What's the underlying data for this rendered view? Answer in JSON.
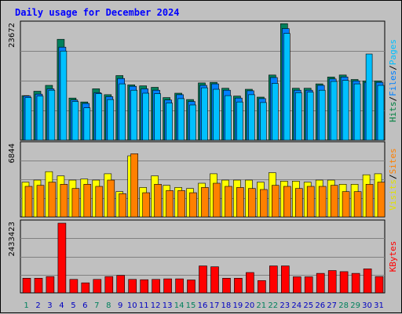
{
  "chart_data": {
    "type": "bar",
    "title": "Daily usage for December 2024",
    "categories": [
      "1",
      "2",
      "3",
      "4",
      "5",
      "6",
      "7",
      "8",
      "9",
      "10",
      "11",
      "12",
      "13",
      "14",
      "15",
      "16",
      "17",
      "18",
      "19",
      "20",
      "21",
      "22",
      "23",
      "24",
      "25",
      "26",
      "27",
      "28",
      "29",
      "30",
      "31"
    ],
    "weekend_days": [
      "1",
      "7",
      "8",
      "14",
      "15",
      "21",
      "22",
      "28",
      "29"
    ],
    "panels": [
      {
        "name": "requests",
        "ymax_label": "23672",
        "ymax": 23672,
        "axis_labels": [
          {
            "text": "Hits",
            "color": "#008040"
          },
          {
            "text": "/",
            "color": "#000000"
          },
          {
            "text": "Files",
            "color": "#0080ff"
          },
          {
            "text": "/",
            "color": "#000000"
          },
          {
            "text": "Pages",
            "color": "#00c0ff"
          }
        ],
        "series": [
          {
            "name": "Hits",
            "color": "#00805c",
            "values": [
              9100,
              10000,
              11200,
              20600,
              8600,
              7800,
              10500,
              9300,
              13200,
              11300,
              11100,
              10800,
              8700,
              9600,
              8300,
              11700,
              11800,
              10600,
              9000,
              10400,
              8800,
              13300,
              23800,
              10600,
              10600,
              11500,
              12900,
              13300,
              12400,
              12100,
              12100
            ]
          },
          {
            "name": "Files",
            "color": "#0080ff",
            "values": [
              9000,
              9400,
              10500,
              19000,
              8200,
              7500,
              9700,
              8900,
              12600,
              11000,
              10500,
              10200,
              8200,
              9300,
              7900,
              11200,
              11500,
              10200,
              8600,
              10100,
              8500,
              12800,
              22800,
              10200,
              10200,
              11200,
              12500,
              12900,
              12100,
              11800,
              11800
            ]
          },
          {
            "name": "Pages",
            "color": "#00c0ff",
            "values": [
              8700,
              9000,
              10200,
              18200,
              7900,
              6600,
              9500,
              8300,
              11500,
              10200,
              9600,
              9500,
              7600,
              8500,
              7200,
              10700,
              10400,
              9100,
              7800,
              9300,
              7700,
              11600,
              21800,
              9700,
              9800,
              10200,
              12000,
              12200,
              11500,
              17600,
              11200
            ]
          }
        ]
      },
      {
        "name": "visitors",
        "ymax_label": "6844",
        "ymax": 6844,
        "axis_labels": [
          {
            "text": "Visits",
            "color": "#e0e000"
          },
          {
            "text": "/",
            "color": "#000000"
          },
          {
            "text": "Sites",
            "color": "#ff8000"
          }
        ],
        "series": [
          {
            "name": "Visits",
            "color": "#ffff00",
            "values": [
              3300,
              3500,
              4300,
              3900,
              3500,
              3600,
              3500,
              4100,
              2400,
              5800,
              2800,
              3900,
              3000,
              2800,
              2700,
              3200,
              4100,
              3500,
              3500,
              3500,
              3300,
              4200,
              3400,
              3400,
              3300,
              3500,
              3500,
              3100,
              3100,
              4000,
              4100
            ]
          },
          {
            "name": "Sites",
            "color": "#ff8000",
            "values": [
              2900,
              3000,
              3300,
              3100,
              2700,
              3100,
              2900,
              3500,
              2200,
              6000,
              2300,
              3100,
              2500,
              2500,
              2300,
              2800,
              3200,
              2900,
              2800,
              2700,
              2600,
              3000,
              2900,
              2700,
              2900,
              2900,
              3000,
              2400,
              2400,
              3100,
              3300
            ]
          }
        ]
      },
      {
        "name": "volume",
        "ymax_label": "2433423",
        "ymax": 2433423,
        "axis_labels": [
          {
            "text": "KBytes",
            "color": "#ff0000"
          }
        ],
        "series": [
          {
            "name": "KBytes",
            "color": "#ff0000",
            "values": [
              510000,
              510000,
              570000,
              2433000,
              470000,
              350000,
              470000,
              570000,
              610000,
              470000,
              460000,
              470000,
              490000,
              490000,
              450000,
              940000,
              910000,
              510000,
              510000,
              710000,
              430000,
              940000,
              940000,
              560000,
              560000,
              680000,
              780000,
              740000,
              680000,
              840000,
              570000
            ]
          }
        ]
      }
    ]
  }
}
